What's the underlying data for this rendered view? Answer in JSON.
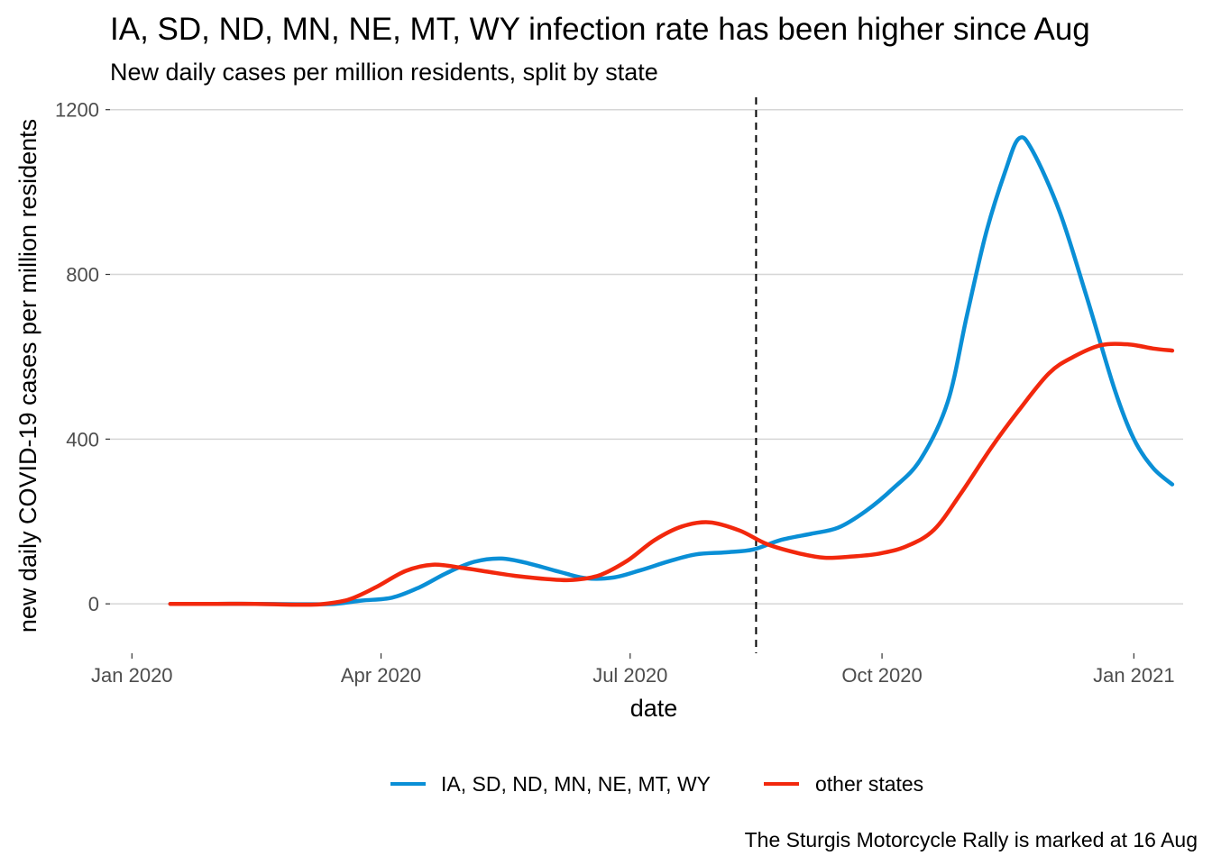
{
  "chart_data": {
    "type": "line",
    "title": "IA, SD, ND, MN, NE, MT, WY infection rate has been higher since Aug",
    "subtitle": "New daily cases per million residents, split by state",
    "xlabel": "date",
    "ylabel": "new daily COVID-19 cases per million residents",
    "caption": "The Sturgis Motorcycle Rally is marked at 16 Aug",
    "x_ticks": [
      {
        "label": "Jan 2020",
        "date": "2020-01-01"
      },
      {
        "label": "Apr 2020",
        "date": "2020-04-01"
      },
      {
        "label": "Jul 2020",
        "date": "2020-07-01"
      },
      {
        "label": "Oct 2020",
        "date": "2020-10-01"
      },
      {
        "label": "Jan 2021",
        "date": "2021-01-01"
      }
    ],
    "y_ticks": [
      0,
      400,
      800,
      1200
    ],
    "xlim": [
      "2019-12-24",
      "2021-01-19"
    ],
    "ylim": [
      -120,
      1230
    ],
    "grid": "horizontal major only",
    "legend_position": "bottom",
    "vline": {
      "date": "2020-08-16",
      "style": "dashed"
    },
    "series": [
      {
        "name": "IA, SD, ND, MN, NE, MT, WY",
        "color": "#0a8fd6",
        "points": [
          [
            "2020-01-15",
            0
          ],
          [
            "2020-02-01",
            0
          ],
          [
            "2020-02-15",
            0
          ],
          [
            "2020-03-01",
            -1
          ],
          [
            "2020-03-15",
            0
          ],
          [
            "2020-03-25",
            8
          ],
          [
            "2020-04-05",
            15
          ],
          [
            "2020-04-15",
            40
          ],
          [
            "2020-04-25",
            75
          ],
          [
            "2020-05-05",
            102
          ],
          [
            "2020-05-15",
            110
          ],
          [
            "2020-05-25",
            98
          ],
          [
            "2020-06-05",
            78
          ],
          [
            "2020-06-15",
            62
          ],
          [
            "2020-06-25",
            64
          ],
          [
            "2020-07-05",
            82
          ],
          [
            "2020-07-15",
            103
          ],
          [
            "2020-07-25",
            120
          ],
          [
            "2020-08-05",
            125
          ],
          [
            "2020-08-15",
            132
          ],
          [
            "2020-08-25",
            155
          ],
          [
            "2020-09-05",
            170
          ],
          [
            "2020-09-15",
            185
          ],
          [
            "2020-09-25",
            225
          ],
          [
            "2020-10-05",
            280
          ],
          [
            "2020-10-15",
            350
          ],
          [
            "2020-10-25",
            490
          ],
          [
            "2020-11-01",
            700
          ],
          [
            "2020-11-08",
            900
          ],
          [
            "2020-11-15",
            1050
          ],
          [
            "2020-11-20",
            1130
          ],
          [
            "2020-11-25",
            1100
          ],
          [
            "2020-12-05",
            950
          ],
          [
            "2020-12-15",
            740
          ],
          [
            "2020-12-25",
            520
          ],
          [
            "2021-01-01",
            400
          ],
          [
            "2021-01-08",
            330
          ],
          [
            "2021-01-15",
            290
          ]
        ]
      },
      {
        "name": "other states",
        "color": "#f2280d",
        "points": [
          [
            "2020-01-15",
            0
          ],
          [
            "2020-02-01",
            0
          ],
          [
            "2020-02-15",
            0
          ],
          [
            "2020-03-01",
            -2
          ],
          [
            "2020-03-10",
            -1
          ],
          [
            "2020-03-20",
            10
          ],
          [
            "2020-03-30",
            40
          ],
          [
            "2020-04-10",
            80
          ],
          [
            "2020-04-20",
            95
          ],
          [
            "2020-05-01",
            87
          ],
          [
            "2020-05-10",
            78
          ],
          [
            "2020-05-20",
            68
          ],
          [
            "2020-06-01",
            60
          ],
          [
            "2020-06-10",
            58
          ],
          [
            "2020-06-20",
            70
          ],
          [
            "2020-06-30",
            105
          ],
          [
            "2020-07-10",
            155
          ],
          [
            "2020-07-20",
            188
          ],
          [
            "2020-07-30",
            198
          ],
          [
            "2020-08-10",
            178
          ],
          [
            "2020-08-20",
            145
          ],
          [
            "2020-09-01",
            122
          ],
          [
            "2020-09-10",
            112
          ],
          [
            "2020-09-20",
            115
          ],
          [
            "2020-09-30",
            122
          ],
          [
            "2020-10-10",
            140
          ],
          [
            "2020-10-20",
            180
          ],
          [
            "2020-10-30",
            270
          ],
          [
            "2020-11-10",
            380
          ],
          [
            "2020-11-20",
            470
          ],
          [
            "2020-12-01",
            560
          ],
          [
            "2020-12-10",
            600
          ],
          [
            "2020-12-20",
            628
          ],
          [
            "2020-12-30",
            630
          ],
          [
            "2021-01-08",
            620
          ],
          [
            "2021-01-15",
            615
          ]
        ]
      }
    ]
  }
}
